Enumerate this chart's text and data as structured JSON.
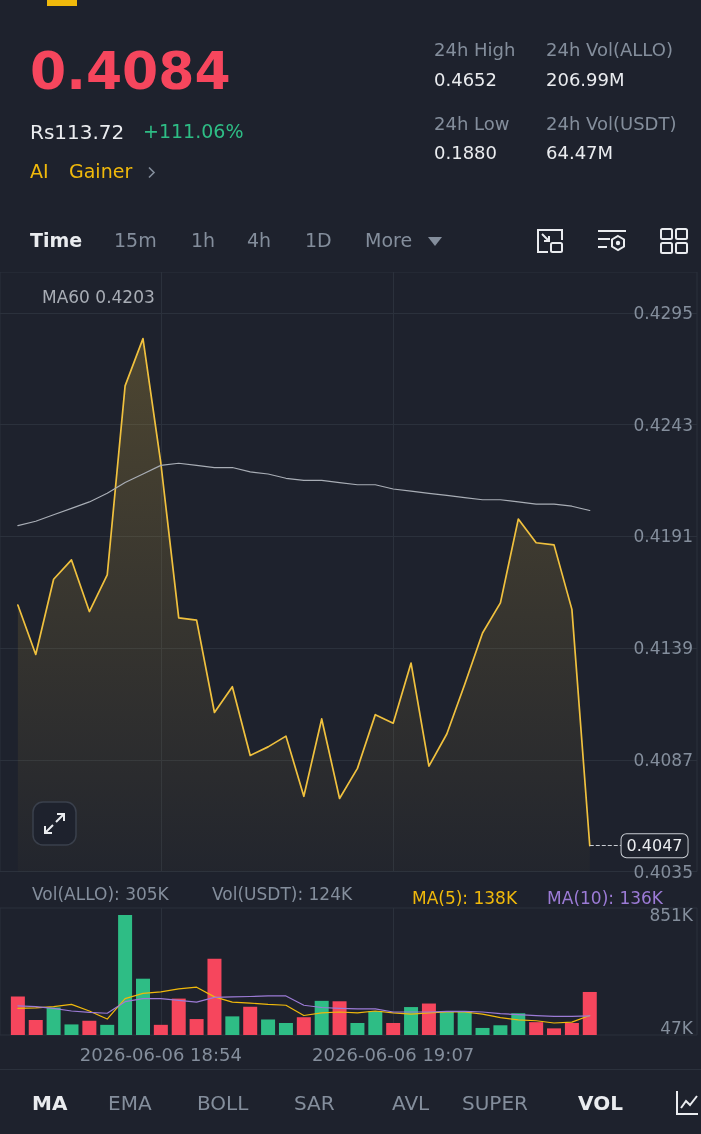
{
  "chart_data": [
    {
      "type": "other",
      "annotations": [
        "0.4084",
        "Rs113.72",
        "+111.06%",
        "AI",
        "Gainer",
        "24h High",
        "0.4652",
        "24h Low",
        "0.1880",
        "24h Vol(ALLO)",
        "206.99M",
        "24h Vol(USDT)",
        "64.47M"
      ]
    },
    {
      "type": "other",
      "annotations": [
        "Time",
        "15m",
        "1h",
        "4h",
        "1D",
        "More"
      ]
    },
    {
      "type": "area",
      "x": [
        "2026-06-06T18:46",
        "2026-06-06T18:47",
        "2026-06-06T18:48",
        "2026-06-06T18:49",
        "2026-06-06T18:50",
        "2026-06-06T18:51",
        "2026-06-06T18:52",
        "2026-06-06T18:53",
        "2026-06-06T18:54",
        "2026-06-06T18:55",
        "2026-06-06T18:56",
        "2026-06-06T18:57",
        "2026-06-06T18:58",
        "2026-06-06T18:59",
        "2026-06-06T19:00",
        "2026-06-06T19:01",
        "2026-06-06T19:02",
        "2026-06-06T19:03",
        "2026-06-06T19:04",
        "2026-06-06T19:05",
        "2026-06-06T19:06",
        "2026-06-06T19:07",
        "2026-06-06T19:08",
        "2026-06-06T19:09",
        "2026-06-06T19:10",
        "2026-06-06T19:11",
        "2026-06-06T19:12",
        "2026-06-06T19:13",
        "2026-06-06T19:14",
        "2026-06-06T19:15",
        "2026-06-06T19:16",
        "2026-06-06T19:17",
        "2026-06-06T19:18"
      ],
      "series": [
        {
          "color": "#f0c13e",
          "values": [
            0.4159,
            0.4136,
            0.4171,
            0.418,
            0.4156,
            0.4173,
            0.4261,
            0.4283,
            0.4225,
            0.4153,
            0.4152,
            0.4109,
            0.4121,
            0.4089,
            0.4093,
            0.4098,
            0.407,
            0.4106,
            0.4069,
            0.4083,
            0.4108,
            0.4104,
            0.4132,
            0.4084,
            0.4099,
            0.4122,
            0.4146,
            0.416,
            0.4199,
            0.4188,
            0.4187,
            0.4157,
            0.4047
          ]
        },
        {
          "type": "line",
          "name": "MA60 0.4203",
          "color": "#a8adb5",
          "values": [
            0.4196,
            0.4198,
            0.4201,
            0.4204,
            0.4207,
            0.4211,
            0.4216,
            0.422,
            0.4224,
            0.4225,
            0.4224,
            0.4223,
            0.4223,
            0.4221,
            0.422,
            0.4218,
            0.4217,
            0.4217,
            0.4216,
            0.4215,
            0.4215,
            0.4213,
            0.4212,
            0.4211,
            0.421,
            0.4209,
            0.4208,
            0.4208,
            0.4207,
            0.4206,
            0.4206,
            0.4205,
            0.4203
          ]
        }
      ],
      "xlim": [
        "2026-06-06T18:45",
        "2026-06-06T19:24"
      ],
      "xticks": [
        {
          "value": "2026-06-06T18:54",
          "label": null
        },
        {
          "value": "2026-06-06T19:07",
          "label": null
        }
      ],
      "ylim": [
        0.4035,
        0.4314
      ],
      "yticks": [
        0.4035,
        0.4087,
        0.4139,
        0.4191,
        0.4243,
        0.4295
      ],
      "grid": true,
      "legend": "top left",
      "marker": "none",
      "tick_labels": "y",
      "ref_lines": [
        {
          "axis": "y",
          "value": 0.4047,
          "label": "0.4047",
          "line_style": "dashed",
          "color": "#c9cdd3"
        }
      ]
    },
    {
      "type": "bar",
      "x": [
        "2026-06-06T18:46",
        "2026-06-06T18:47",
        "2026-06-06T18:48",
        "2026-06-06T18:49",
        "2026-06-06T18:50",
        "2026-06-06T18:51",
        "2026-06-06T18:52",
        "2026-06-06T18:53",
        "2026-06-06T18:54",
        "2026-06-06T18:55",
        "2026-06-06T18:56",
        "2026-06-06T18:57",
        "2026-06-06T18:58",
        "2026-06-06T18:59",
        "2026-06-06T19:00",
        "2026-06-06T19:01",
        "2026-06-06T19:02",
        "2026-06-06T19:03",
        "2026-06-06T19:04",
        "2026-06-06T19:05",
        "2026-06-06T19:06",
        "2026-06-06T19:07",
        "2026-06-06T19:08",
        "2026-06-06T19:09",
        "2026-06-06T19:10",
        "2026-06-06T19:11",
        "2026-06-06T19:12",
        "2026-06-06T19:13",
        "2026-06-06T19:14",
        "2026-06-06T19:15",
        "2026-06-06T19:16",
        "2026-06-06T19:17",
        "2026-06-06T19:18"
      ],
      "series": [
        {
          "colors": [
            "#f6465d",
            "#f6465d",
            "#2ebd85",
            "#2ebd85",
            "#f6465d",
            "#2ebd85",
            "#2ebd85",
            "#2ebd85",
            "#f6465d",
            "#f6465d",
            "#f6465d",
            "#f6465d",
            "#2ebd85",
            "#f6465d",
            "#2ebd85",
            "#2ebd85",
            "#f6465d",
            "#2ebd85",
            "#f6465d",
            "#2ebd85",
            "#2ebd85",
            "#f6465d",
            "#2ebd85",
            "#f6465d",
            "#2ebd85",
            "#2ebd85",
            "#2ebd85",
            "#2ebd85",
            "#2ebd85",
            "#f6465d",
            "#f6465d",
            "#f6465d",
            "#f6465d"
          ],
          "values": [
            273,
            107,
            195,
            75,
            101,
            72,
            851,
            399,
            72,
            258,
            113,
            541,
            132,
            201,
            110,
            85,
            126,
            242,
            239,
            85,
            170,
            85,
            198,
            223,
            170,
            170,
            50,
            69,
            154,
            91,
            47,
            85,
            305
          ]
        },
        {
          "type": "line",
          "name": "MA(5): 138K",
          "color": "#f0b90b",
          "values": [
            189,
            192,
            201,
            217,
            170,
            113,
            258,
            295,
            305,
            327,
            339,
            270,
            233,
            226,
            217,
            211,
            138,
            157,
            163,
            157,
            170,
            157,
            148,
            157,
            163,
            163,
            148,
            123,
            107,
            101,
            85,
            91,
            138
          ]
        },
        {
          "type": "line",
          "name": "MA(10): 136K",
          "color": "#9c7bd6",
          "values": [
            207,
            201,
            189,
            170,
            160,
            154,
            236,
            258,
            258,
            245,
            233,
            267,
            270,
            273,
            277,
            277,
            211,
            195,
            189,
            185,
            185,
            163,
            163,
            163,
            167,
            167,
            163,
            151,
            145,
            138,
            132,
            132,
            136
          ]
        }
      ],
      "annotations": [
        "Vol(ALLO): 305K",
        "Vol(USDT): 124K"
      ],
      "xlim": [
        "2026-06-06T18:45",
        "2026-06-06T19:24"
      ],
      "xticks": [
        {
          "value": "2026-06-06T18:54",
          "label": "2026-06-06 18:54"
        },
        {
          "value": "2026-06-06T19:07",
          "label": "2026-06-06 19:07"
        }
      ],
      "ylim": [
        0,
        900
      ],
      "yticks": [
        {
          "value": 47,
          "label": "47K"
        },
        {
          "value": 851,
          "label": "851K"
        }
      ],
      "grid": "x",
      "legend": "top right",
      "marker": "none"
    },
    {
      "type": "other",
      "annotations": [
        "MA",
        "EMA",
        "BOLL",
        "SAR",
        "AVL",
        "SUPER",
        "VOL"
      ]
    }
  ]
}
